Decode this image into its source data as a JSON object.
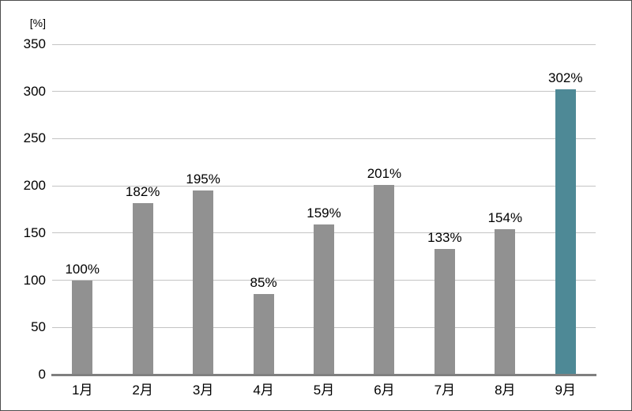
{
  "chart_data": {
    "type": "bar",
    "title": "",
    "ylabel_unit": "[%]",
    "categories": [
      "1月",
      "2月",
      "3月",
      "4月",
      "5月",
      "6月",
      "7月",
      "8月",
      "9月"
    ],
    "values": [
      100,
      182,
      195,
      85,
      159,
      201,
      133,
      154,
      302
    ],
    "value_labels": [
      "100%",
      "182%",
      "195%",
      "85%",
      "159%",
      "201%",
      "133%",
      "154%",
      "302%"
    ],
    "yticks": [
      0,
      50,
      100,
      150,
      200,
      250,
      300,
      350
    ],
    "ytick_labels": [
      "0",
      "50",
      "100",
      "150",
      "200",
      "250",
      "300",
      "350"
    ],
    "ylim": [
      0,
      350
    ],
    "grid": "horizontal",
    "legend_position": "none",
    "bar_color": "#919191",
    "highlight_color": "#4e8996",
    "highlight_index": 8,
    "gridline_color": "#c4c4c4",
    "axis_color": "#7f7f7f",
    "text_color": "#000000"
  }
}
